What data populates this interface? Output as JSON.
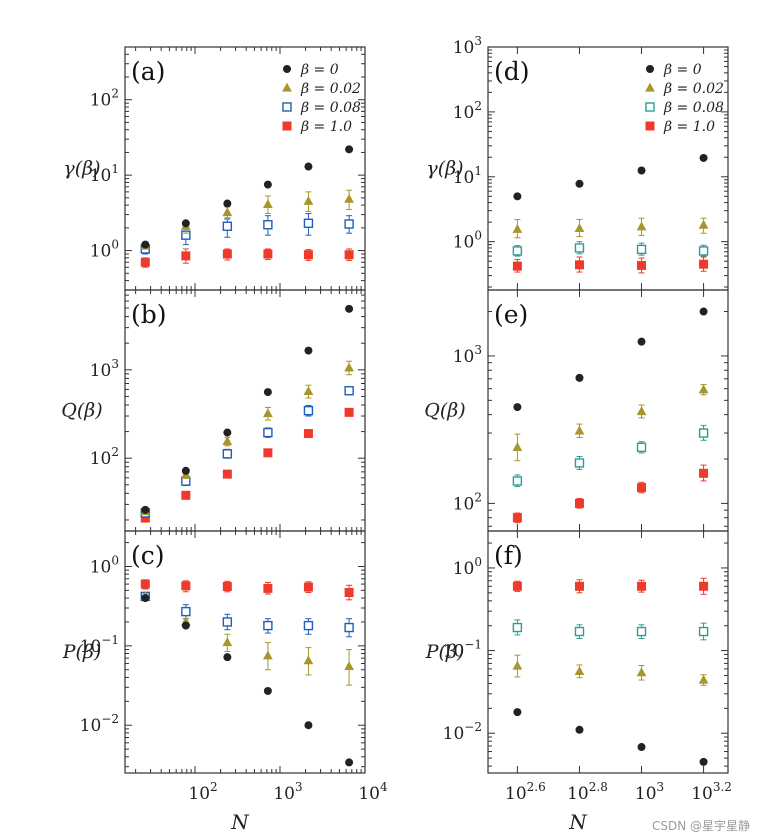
{
  "watermark": "CSDN @星宇星静",
  "colors": {
    "beta0": "#222222",
    "beta002": "#a8962d",
    "beta008_left": "#1f5fb8",
    "beta008_right": "#2a9d96",
    "beta1": "#ee3a2a"
  },
  "chart_data": [
    {
      "panel": "(a)",
      "type": "scatter",
      "xscale": "log",
      "yscale": "log",
      "ylabel": "γ(β)",
      "xlim": [
        15,
        10000
      ],
      "ylim": [
        0.3,
        500
      ],
      "yticks": [
        {
          "v": 1,
          "e": "0"
        },
        {
          "v": 10,
          "e": "1"
        },
        {
          "v": 100,
          "e": "2"
        }
      ],
      "x": [
        26,
        78,
        240,
        720,
        2160,
        6500
      ],
      "legend": true,
      "series": [
        {
          "name": "β = 0",
          "marker": "circle",
          "color": "#222222",
          "values": [
            1.2,
            2.3,
            4.2,
            7.5,
            13,
            22
          ],
          "errors": [
            null,
            null,
            null,
            null,
            null,
            null
          ]
        },
        {
          "name": "β = 0.02",
          "marker": "triangle",
          "color": "#a8962d",
          "values": [
            1.15,
            2.1,
            3.2,
            4.1,
            4.5,
            4.8
          ],
          "errors": [
            [
              1.05,
              1.25
            ],
            [
              1.7,
              2.4
            ],
            [
              2.6,
              3.8
            ],
            [
              3.1,
              5.3
            ],
            [
              3.3,
              6.0
            ],
            [
              3.5,
              6.3
            ]
          ]
        },
        {
          "name": "β = 0.08",
          "marker": "square",
          "color": "#1f5fb8",
          "values": [
            1.05,
            1.6,
            2.1,
            2.2,
            2.3,
            2.25
          ],
          "errors": [
            [
              0.9,
              1.2
            ],
            [
              1.2,
              2.0
            ],
            [
              1.5,
              2.7
            ],
            [
              1.6,
              2.9
            ],
            [
              1.6,
              3.1
            ],
            [
              1.7,
              2.9
            ]
          ]
        },
        {
          "name": "β = 1.0",
          "marker": "filled-square",
          "color": "#ee3a2a",
          "values": [
            0.7,
            0.85,
            0.9,
            0.9,
            0.88,
            0.88
          ],
          "errors": [
            [
              0.6,
              0.8
            ],
            [
              0.68,
              1.05
            ],
            [
              0.75,
              1.05
            ],
            [
              0.76,
              1.05
            ],
            [
              0.74,
              1.03
            ],
            [
              0.74,
              1.05
            ]
          ]
        }
      ]
    },
    {
      "panel": "(b)",
      "type": "scatter",
      "xscale": "log",
      "yscale": "log",
      "ylabel": "Q(β)",
      "xlim": [
        15,
        10000
      ],
      "ylim": [
        15,
        8000
      ],
      "yticks": [
        {
          "v": 100,
          "e": "2"
        },
        {
          "v": 1000,
          "e": "3"
        }
      ],
      "x": [
        26,
        78,
        240,
        720,
        2160,
        6500
      ],
      "legend": false,
      "series": [
        {
          "name": "β = 0",
          "marker": "circle",
          "color": "#222222",
          "values": [
            26,
            72,
            195,
            560,
            1650,
            4900
          ],
          "errors": [
            null,
            null,
            null,
            null,
            null,
            null
          ]
        },
        {
          "name": "β = 0.02",
          "marker": "triangle",
          "color": "#a8962d",
          "values": [
            25,
            65,
            155,
            320,
            570,
            1050
          ],
          "errors": [
            [
              23,
              27
            ],
            [
              59,
              71
            ],
            [
              138,
              172
            ],
            [
              270,
              375
            ],
            [
              480,
              670
            ],
            [
              880,
              1250
            ]
          ]
        },
        {
          "name": "β = 0.08",
          "marker": "square",
          "color": "#1f5fb8",
          "values": [
            24,
            55,
            112,
            195,
            345,
            580
          ],
          "errors": [
            [
              22,
              26
            ],
            [
              49,
              61
            ],
            [
              100,
              126
            ],
            [
              172,
              220
            ],
            [
              300,
              395
            ],
            [
              530,
              630
            ]
          ]
        },
        {
          "name": "β = 1.0",
          "marker": "filled-square",
          "color": "#ee3a2a",
          "values": [
            21,
            38,
            66,
            115,
            190,
            330
          ],
          "errors": [
            null,
            null,
            null,
            null,
            null,
            null
          ]
        }
      ]
    },
    {
      "panel": "(c)",
      "type": "scatter",
      "xscale": "log",
      "yscale": "log",
      "ylabel": "P(β)",
      "xlim": [
        15,
        10000
      ],
      "ylim": [
        0.0025,
        2.8
      ],
      "yticks": [
        {
          "v": 0.01,
          "e": "−2"
        },
        {
          "v": 0.1,
          "e": "−1"
        },
        {
          "v": 1,
          "e": "0"
        }
      ],
      "x": [
        26,
        78,
        240,
        720,
        2160,
        6500
      ],
      "xticks": [
        {
          "v": 100,
          "e": "2"
        },
        {
          "v": 1000,
          "e": "3"
        },
        {
          "v": 10000,
          "e": "4"
        }
      ],
      "xlabel": "N",
      "legend": false,
      "series": [
        {
          "name": "β = 0",
          "marker": "circle",
          "color": "#222222",
          "values": [
            0.4,
            0.18,
            0.072,
            0.027,
            0.01,
            0.0034
          ],
          "errors": [
            null,
            null,
            null,
            null,
            null,
            null
          ]
        },
        {
          "name": "β = 0.02",
          "marker": "triangle",
          "color": "#a8962d",
          "values": [
            0.42,
            0.2,
            0.11,
            0.075,
            0.065,
            0.055
          ],
          "errors": [
            [
              0.39,
              0.45
            ],
            [
              0.18,
              0.22
            ],
            [
              0.085,
              0.14
            ],
            [
              0.05,
              0.11
            ],
            [
              0.043,
              0.095
            ],
            [
              0.032,
              0.09
            ]
          ]
        },
        {
          "name": "β = 0.08",
          "marker": "square",
          "color": "#1f5fb8",
          "values": [
            0.42,
            0.27,
            0.2,
            0.18,
            0.18,
            0.17
          ],
          "errors": [
            [
              0.39,
              0.45
            ],
            [
              0.22,
              0.33
            ],
            [
              0.16,
              0.25
            ],
            [
              0.145,
              0.22
            ],
            [
              0.14,
              0.22
            ],
            [
              0.13,
              0.22
            ]
          ]
        },
        {
          "name": "β = 1.0",
          "marker": "filled-square",
          "color": "#ee3a2a",
          "values": [
            0.6,
            0.57,
            0.56,
            0.53,
            0.55,
            0.47
          ],
          "errors": [
            [
              0.52,
              0.68
            ],
            [
              0.48,
              0.66
            ],
            [
              0.48,
              0.65
            ],
            [
              0.45,
              0.63
            ],
            [
              0.47,
              0.64
            ],
            [
              0.38,
              0.58
            ]
          ]
        }
      ]
    },
    {
      "panel": "(d)",
      "type": "scatter",
      "xscale": "log",
      "yscale": "log",
      "ylabel": "γ(β)",
      "xlim": [
        320,
        1900
      ],
      "ylim": [
        0.18,
        1000
      ],
      "yticks": [
        {
          "v": 1,
          "e": "0"
        },
        {
          "v": 10,
          "e": "1"
        },
        {
          "v": 100,
          "e": "2"
        },
        {
          "v": 1000,
          "e": "3"
        }
      ],
      "x": [
        398,
        631,
        1000,
        1585
      ],
      "legend": true,
      "series": [
        {
          "name": "β = 0",
          "marker": "circle",
          "color": "#222222",
          "values": [
            5,
            7.8,
            12.5,
            19.5
          ],
          "errors": [
            null,
            null,
            null,
            null
          ]
        },
        {
          "name": "β = 0.02",
          "marker": "triangle",
          "color": "#a8962d",
          "values": [
            1.55,
            1.6,
            1.7,
            1.8
          ],
          "errors": [
            [
              1.15,
              2.2
            ],
            [
              1.2,
              2.2
            ],
            [
              1.25,
              2.3
            ],
            [
              1.35,
              2.3
            ]
          ]
        },
        {
          "name": "β = 0.08",
          "marker": "square",
          "color": "#2a9d96",
          "values": [
            0.72,
            0.8,
            0.76,
            0.72
          ],
          "errors": [
            [
              0.6,
              0.87
            ],
            [
              0.65,
              1.0
            ],
            [
              0.62,
              0.95
            ],
            [
              0.6,
              0.88
            ]
          ]
        },
        {
          "name": "β = 1.0",
          "marker": "filled-square",
          "color": "#ee3a2a",
          "values": [
            0.42,
            0.44,
            0.43,
            0.45
          ],
          "errors": [
            [
              0.34,
              0.53
            ],
            [
              0.34,
              0.58
            ],
            [
              0.33,
              0.56
            ],
            [
              0.35,
              0.58
            ]
          ]
        }
      ]
    },
    {
      "panel": "(e)",
      "type": "scatter",
      "xscale": "log",
      "yscale": "log",
      "ylabel": "Q(β)",
      "xlim": [
        320,
        1900
      ],
      "ylim": [
        65,
        2800
      ],
      "yticks": [
        {
          "v": 100,
          "e": "2"
        },
        {
          "v": 1000,
          "e": "3"
        }
      ],
      "x": [
        398,
        631,
        1000,
        1585
      ],
      "legend": false,
      "series": [
        {
          "name": "β = 0",
          "marker": "circle",
          "color": "#222222",
          "values": [
            450,
            710,
            1250,
            2000
          ],
          "errors": [
            null,
            null,
            null,
            null
          ]
        },
        {
          "name": "β = 0.02",
          "marker": "triangle",
          "color": "#a8962d",
          "values": [
            240,
            310,
            420,
            590
          ],
          "errors": [
            [
              195,
              295
            ],
            [
              280,
              345
            ],
            [
              380,
              465
            ],
            [
              545,
              640
            ]
          ]
        },
        {
          "name": "β = 0.08",
          "marker": "square",
          "color": "#2a9d96",
          "values": [
            142,
            188,
            240,
            300
          ],
          "errors": [
            [
              130,
              156
            ],
            [
              170,
              208
            ],
            [
              220,
              262
            ],
            [
              268,
              338
            ]
          ]
        },
        {
          "name": "β = 1.0",
          "marker": "filled-square",
          "color": "#ee3a2a",
          "values": [
            80,
            100,
            128,
            160
          ],
          "errors": [
            [
              74,
              86
            ],
            [
              93,
              108
            ],
            [
              118,
              139
            ],
            [
              142,
              182
            ]
          ]
        }
      ]
    },
    {
      "panel": "(f)",
      "type": "scatter",
      "xscale": "log",
      "yscale": "log",
      "ylabel": "P(β)",
      "xlim": [
        320,
        1900
      ],
      "ylim": [
        0.0033,
        2.8
      ],
      "yticks": [
        {
          "v": 0.01,
          "e": "−2"
        },
        {
          "v": 0.1,
          "e": "−1"
        },
        {
          "v": 1,
          "e": "0"
        }
      ],
      "x": [
        398,
        631,
        1000,
        1585
      ],
      "xticks": [
        {
          "v": 398,
          "e": "2.6"
        },
        {
          "v": 631,
          "e": "2.8"
        },
        {
          "v": 1000,
          "e": "3"
        },
        {
          "v": 1585,
          "e": "3.2"
        }
      ],
      "xlabel": "N",
      "legend": false,
      "series": [
        {
          "name": "β = 0",
          "marker": "circle",
          "color": "#222222",
          "values": [
            0.018,
            0.011,
            0.0068,
            0.0045
          ],
          "errors": [
            null,
            null,
            null,
            null
          ]
        },
        {
          "name": "β = 0.02",
          "marker": "triangle",
          "color": "#a8962d",
          "values": [
            0.065,
            0.056,
            0.054,
            0.044
          ],
          "errors": [
            [
              0.048,
              0.088
            ],
            [
              0.047,
              0.067
            ],
            [
              0.044,
              0.066
            ],
            [
              0.038,
              0.051
            ]
          ]
        },
        {
          "name": "β = 0.08",
          "marker": "square",
          "color": "#2a9d96",
          "values": [
            0.19,
            0.17,
            0.17,
            0.17
          ],
          "errors": [
            [
              0.155,
              0.235
            ],
            [
              0.14,
              0.205
            ],
            [
              0.14,
              0.205
            ],
            [
              0.135,
              0.215
            ]
          ]
        },
        {
          "name": "β = 1.0",
          "marker": "filled-square",
          "color": "#ee3a2a",
          "values": [
            0.6,
            0.6,
            0.6,
            0.6
          ],
          "errors": [
            [
              0.52,
              0.69
            ],
            [
              0.5,
              0.72
            ],
            [
              0.51,
              0.71
            ],
            [
              0.48,
              0.75
            ]
          ]
        }
      ]
    }
  ]
}
